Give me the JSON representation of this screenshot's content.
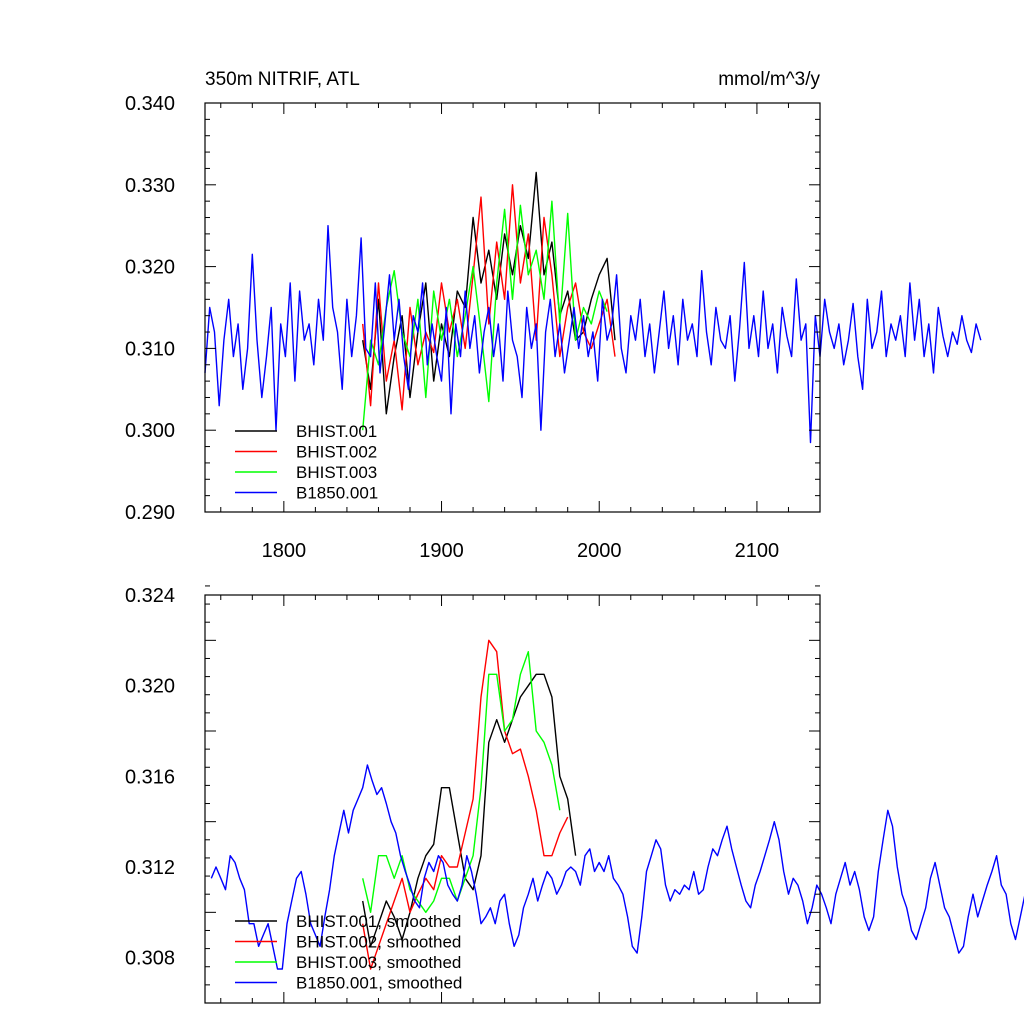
{
  "colors": {
    "BHIST.001": "#000000",
    "BHIST.002": "#ff0000",
    "BHIST.003": "#00ff00",
    "B1850.001": "#0000ff"
  },
  "chart_data": [
    {
      "type": "line",
      "title_left": "350m NITRIF, ATL",
      "title_right": "mmol/m^3/y",
      "xlim": [
        1750,
        2140
      ],
      "ylim": [
        0.29,
        0.34
      ],
      "x_ticks": [
        1800,
        1900,
        2000,
        2100
      ],
      "x_tick_labels": [
        "1800",
        "1900",
        "2000",
        "2100"
      ],
      "y_ticks": [
        0.29,
        0.3,
        0.31,
        0.32,
        0.33,
        0.34
      ],
      "y_tick_labels": [
        "0.290",
        "0.300",
        "0.310",
        "0.320",
        "0.330",
        "0.340"
      ],
      "legend_position": "bottom-left",
      "grid": false,
      "series": [
        {
          "name": "BHIST.001",
          "color": "#000000",
          "x_start": 1850,
          "x_step": 5,
          "values": [
            0.311,
            0.305,
            0.316,
            0.302,
            0.309,
            0.314,
            0.304,
            0.312,
            0.318,
            0.306,
            0.313,
            0.309,
            0.317,
            0.315,
            0.326,
            0.318,
            0.322,
            0.316,
            0.324,
            0.319,
            0.325,
            0.321,
            0.3315,
            0.319,
            0.323,
            0.314,
            0.317,
            0.311,
            0.312,
            0.316,
            0.319,
            0.321,
            0.311
          ]
        },
        {
          "name": "BHIST.002",
          "color": "#ff0000",
          "x_start": 1850,
          "x_step": 5,
          "values": [
            0.313,
            0.303,
            0.318,
            0.306,
            0.311,
            0.3025,
            0.315,
            0.308,
            0.312,
            0.3095,
            0.318,
            0.312,
            0.316,
            0.31,
            0.319,
            0.3285,
            0.313,
            0.323,
            0.316,
            0.33,
            0.318,
            0.324,
            0.311,
            0.326,
            0.319,
            0.309,
            0.315,
            0.318,
            0.312,
            0.31,
            0.313,
            0.316,
            0.309
          ]
        },
        {
          "name": "BHIST.003",
          "color": "#00ff00",
          "x_start": 1850,
          "x_step": 5,
          "values": [
            0.3,
            0.311,
            0.308,
            0.315,
            0.3195,
            0.312,
            0.309,
            0.316,
            0.304,
            0.317,
            0.311,
            0.316,
            0.309,
            0.314,
            0.32,
            0.312,
            0.3035,
            0.318,
            0.327,
            0.316,
            0.3275,
            0.319,
            0.322,
            0.316,
            0.328,
            0.313,
            0.3265,
            0.311,
            0.315,
            0.313,
            0.317,
            0.3145
          ]
        },
        {
          "name": "B1850.001",
          "color": "#0000ff",
          "x_start": 1750,
          "x_step": 3,
          "values": [
            0.307,
            0.315,
            0.312,
            0.303,
            0.311,
            0.316,
            0.309,
            0.313,
            0.305,
            0.31,
            0.3215,
            0.311,
            0.304,
            0.309,
            0.315,
            0.3,
            0.313,
            0.309,
            0.318,
            0.306,
            0.317,
            0.311,
            0.313,
            0.308,
            0.316,
            0.311,
            0.325,
            0.315,
            0.312,
            0.305,
            0.316,
            0.309,
            0.314,
            0.3235,
            0.31,
            0.309,
            0.318,
            0.307,
            0.313,
            0.319,
            0.311,
            0.316,
            0.309,
            0.305,
            0.314,
            0.312,
            0.318,
            0.308,
            0.313,
            0.309,
            0.306,
            0.315,
            0.302,
            0.313,
            0.309,
            0.317,
            0.31,
            0.314,
            0.307,
            0.312,
            0.315,
            0.309,
            0.313,
            0.306,
            0.317,
            0.311,
            0.309,
            0.304,
            0.315,
            0.31,
            0.313,
            0.3,
            0.312,
            0.316,
            0.309,
            0.313,
            0.307,
            0.311,
            0.315,
            0.31,
            0.314,
            0.309,
            0.312,
            0.306,
            0.316,
            0.311,
            0.313,
            0.319,
            0.31,
            0.307,
            0.314,
            0.311,
            0.316,
            0.309,
            0.313,
            0.307,
            0.312,
            0.317,
            0.31,
            0.314,
            0.308,
            0.316,
            0.311,
            0.313,
            0.309,
            0.3195,
            0.312,
            0.308,
            0.315,
            0.311,
            0.31,
            0.314,
            0.306,
            0.3125,
            0.3205,
            0.31,
            0.314,
            0.309,
            0.317,
            0.31,
            0.313,
            0.307,
            0.315,
            0.3115,
            0.309,
            0.3185,
            0.311,
            0.313,
            0.2985,
            0.314,
            0.309,
            0.316,
            0.312,
            0.31,
            0.313,
            0.308,
            0.311,
            0.3155,
            0.309,
            0.305,
            0.316,
            0.31,
            0.312,
            0.317,
            0.309,
            0.313,
            0.311,
            0.314,
            0.309,
            0.318,
            0.311,
            0.316,
            0.309,
            0.313,
            0.307,
            0.315,
            0.3115,
            0.309,
            0.312,
            0.3105,
            0.314,
            0.311,
            0.3095,
            0.313,
            0.311
          ]
        }
      ]
    },
    {
      "type": "line",
      "xlim": [
        1750,
        2140
      ],
      "ylim": [
        0.306,
        0.324
      ],
      "x_ticks": [
        1800,
        1900,
        2000,
        2100
      ],
      "y_ticks": [
        0.308,
        0.312,
        0.316,
        0.32,
        0.324
      ],
      "y_tick_labels": [
        "0.308",
        "0.312",
        "0.316",
        "0.320",
        "0.324"
      ],
      "legend_position": "bottom-left",
      "grid": false,
      "series": [
        {
          "name": "BHIST.001, smoothed",
          "color": "#000000",
          "x_start": 1850,
          "x_step": 5,
          "values": [
            0.3105,
            0.3085,
            0.3095,
            0.3105,
            0.3098,
            0.3088,
            0.31,
            0.3115,
            0.3125,
            0.313,
            0.3155,
            0.3155,
            0.3135,
            0.3115,
            0.311,
            0.3125,
            0.3175,
            0.3185,
            0.3175,
            0.3185,
            0.3195,
            0.32,
            0.3205,
            0.3205,
            0.3195,
            0.316,
            0.315,
            0.3125
          ]
        },
        {
          "name": "BHIST.002, smoothed",
          "color": "#ff0000",
          "x_start": 1850,
          "x_step": 5,
          "values": [
            0.3095,
            0.3075,
            0.3085,
            0.3095,
            0.3105,
            0.3115,
            0.31,
            0.3108,
            0.3115,
            0.311,
            0.3125,
            0.312,
            0.312,
            0.3135,
            0.315,
            0.3195,
            0.322,
            0.3215,
            0.318,
            0.317,
            0.3172,
            0.316,
            0.3145,
            0.3125,
            0.3125,
            0.3135,
            0.3142
          ]
        },
        {
          "name": "BHIST.003, smoothed",
          "color": "#00ff00",
          "x_start": 1850,
          "x_step": 5,
          "values": [
            0.3115,
            0.31,
            0.3125,
            0.3125,
            0.3115,
            0.3125,
            0.311,
            0.3105,
            0.31,
            0.3105,
            0.3115,
            0.3115,
            0.3105,
            0.3115,
            0.3125,
            0.3155,
            0.3205,
            0.3205,
            0.318,
            0.3185,
            0.3205,
            0.3215,
            0.318,
            0.3175,
            0.3165,
            0.3145
          ]
        },
        {
          "name": "B1850.001, smoothed",
          "color": "#0000ff",
          "x_start": 1754,
          "x_step": 3,
          "values": [
            0.3115,
            0.312,
            0.3115,
            0.311,
            0.3125,
            0.3122,
            0.3115,
            0.311,
            0.3095,
            0.3095,
            0.3085,
            0.309,
            0.3095,
            0.3085,
            0.3075,
            0.3075,
            0.3095,
            0.3105,
            0.3115,
            0.3118,
            0.3108,
            0.3095,
            0.309,
            0.3085,
            0.3098,
            0.311,
            0.3125,
            0.3135,
            0.3145,
            0.3135,
            0.3145,
            0.315,
            0.3155,
            0.3165,
            0.3158,
            0.3152,
            0.3155,
            0.3148,
            0.314,
            0.3135,
            0.3125,
            0.3118,
            0.3112,
            0.3105,
            0.3102,
            0.3115,
            0.3122,
            0.3118,
            0.3125,
            0.3122,
            0.3112,
            0.3108,
            0.3105,
            0.3112,
            0.3125,
            0.3118,
            0.3108,
            0.3095,
            0.3098,
            0.3102,
            0.3095,
            0.3105,
            0.3108,
            0.3095,
            0.3085,
            0.309,
            0.3102,
            0.3108,
            0.3115,
            0.3105,
            0.3112,
            0.3118,
            0.3115,
            0.3108,
            0.3112,
            0.3118,
            0.312,
            0.3118,
            0.3112,
            0.3125,
            0.3128,
            0.3118,
            0.3122,
            0.3118,
            0.3125,
            0.3115,
            0.3112,
            0.3108,
            0.3098,
            0.3085,
            0.3082,
            0.3098,
            0.3118,
            0.3125,
            0.3132,
            0.3128,
            0.3112,
            0.3105,
            0.311,
            0.3108,
            0.3112,
            0.311,
            0.3118,
            0.3108,
            0.311,
            0.312,
            0.3128,
            0.3125,
            0.3132,
            0.3138,
            0.3128,
            0.312,
            0.3112,
            0.3105,
            0.3102,
            0.3112,
            0.3118,
            0.3125,
            0.3132,
            0.314,
            0.3132,
            0.3118,
            0.3108,
            0.3115,
            0.3112,
            0.3105,
            0.3095,
            0.3102,
            0.3112,
            0.3108,
            0.3102,
            0.3095,
            0.3108,
            0.3115,
            0.3122,
            0.3112,
            0.3118,
            0.311,
            0.3098,
            0.3092,
            0.3098,
            0.3118,
            0.3132,
            0.3145,
            0.3138,
            0.312,
            0.3108,
            0.3102,
            0.3092,
            0.3088,
            0.3095,
            0.3102,
            0.3115,
            0.3122,
            0.3112,
            0.3102,
            0.3098,
            0.309,
            0.3082,
            0.3085,
            0.3098,
            0.3108,
            0.3098,
            0.3105,
            0.3112,
            0.3118,
            0.3125,
            0.3112,
            0.3108,
            0.3095,
            0.3088,
            0.3098,
            0.3108,
            0.3112,
            0.3105,
            0.3108,
            0.3112,
            0.3122,
            0.3125,
            0.3118,
            0.3108,
            0.3095,
            0.3085,
            0.3092,
            0.3102,
            0.3098,
            0.3108,
            0.3118,
            0.3135,
            0.313,
            0.3112,
            0.3105,
            0.3115,
            0.3112,
            0.3105
          ]
        }
      ]
    }
  ]
}
